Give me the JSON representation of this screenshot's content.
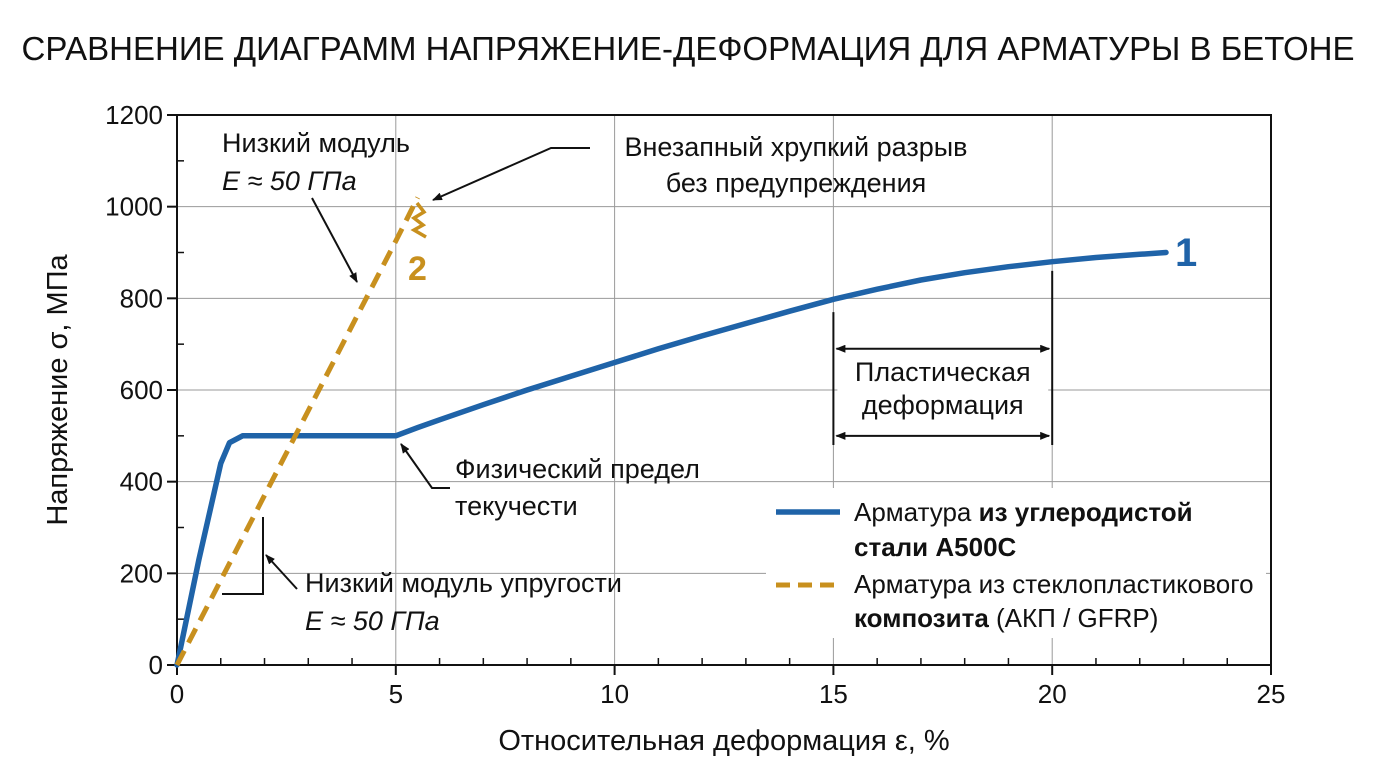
{
  "chart_data": {
    "type": "line",
    "title": "СРАВНЕНИЕ ДИАГРАММ НАПРЯЖЕНИЕ-ДЕФОРМАЦИЯ ДЛЯ АРМАТУРЫ В БЕТОНЕ",
    "xlabel": "Относительная деформация ε, %",
    "ylabel": "Напряжение σ, МПа",
    "xlim": [
      0,
      25
    ],
    "ylim": [
      0,
      1200
    ],
    "xticks": [
      "0",
      "5",
      "10",
      "15",
      "20",
      "25"
    ],
    "yticks": [
      "0",
      "200",
      "400",
      "600",
      "800",
      "1000",
      "1200"
    ],
    "grid": true,
    "legend_position": "bottom-right",
    "series": [
      {
        "id": "steel",
        "marker": "1",
        "color": "#1f63a8",
        "style": "solid",
        "legend_plain": "Арматура ",
        "legend_bold": "из углеродистой",
        "legend_line2_bold": "стали А500С",
        "legend_line2_plain": "",
        "x": [
          0,
          0.5,
          1.0,
          1.2,
          1.5,
          2.0,
          3.0,
          4.0,
          5.0,
          5.5,
          6.0,
          7.0,
          8.0,
          9.0,
          10.0,
          11.0,
          12.0,
          13.0,
          14.0,
          15.0,
          16.0,
          17.0,
          18.0,
          19.0,
          20.0,
          21.0,
          22.0,
          22.6
        ],
        "y": [
          0,
          230,
          440,
          485,
          500,
          500,
          500,
          500,
          500,
          518,
          535,
          568,
          600,
          630,
          660,
          690,
          718,
          745,
          772,
          798,
          820,
          840,
          856,
          869,
          880,
          889,
          896,
          900
        ]
      },
      {
        "id": "gfrp",
        "marker": "2",
        "color": "#c8901e",
        "style": "dashed",
        "legend_plain": "Арматура из стеклопластикового",
        "legend_bold": "",
        "legend_line2_bold": "композита",
        "legend_line2_plain": " (АКП / GFRP)",
        "x": [
          0,
          1,
          2,
          3,
          4,
          5,
          5.5
        ],
        "y": [
          0,
          185,
          370,
          555,
          740,
          925,
          1020
        ]
      }
    ],
    "annotations": {
      "low_modulus_top": [
        "Низкий модуль",
        "E ≈ 50 ГПа"
      ],
      "brittle_failure": [
        "Внезапный хрупкий разрыв",
        "без предупреждения"
      ],
      "low_modulus_bottom": [
        "Низкий модуль упругости",
        "E ≈ 50 ГПа"
      ],
      "yield_point": [
        "Физический предел",
        "текучести"
      ],
      "plastic_zone": [
        "Пластическая",
        "деформация"
      ],
      "plastic_zone_range": [
        15,
        20
      ]
    }
  }
}
